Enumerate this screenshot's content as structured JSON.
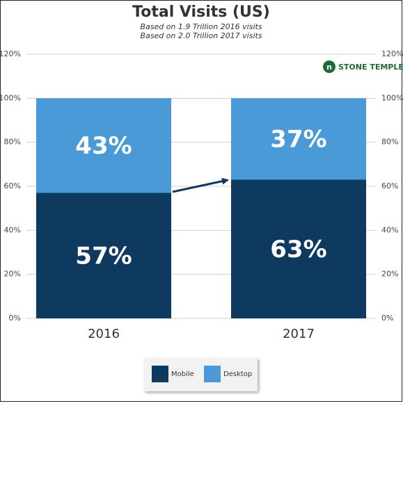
{
  "chart_data": {
    "type": "stacked_bar",
    "title": "Total Visits (US)",
    "subtitle": [
      "Based on 1.9 Trillion 2016 visits",
      "Based on 2.0 Trillion 2017 visits"
    ],
    "logo": "STONE TEMPLE",
    "categories": [
      "2016",
      "2017"
    ],
    "series": [
      {
        "name": "Mobile",
        "color": "#0f3a60",
        "values": [
          57,
          63
        ],
        "value_labels": [
          "57%",
          "63%"
        ]
      },
      {
        "name": "Desktop",
        "color": "#4a9ad8",
        "values": [
          43,
          37
        ],
        "value_labels": [
          "43%",
          "37%"
        ]
      }
    ],
    "ylim": [
      0,
      120
    ],
    "yticks": [
      {
        "value": 0,
        "label": "0%"
      },
      {
        "value": 20,
        "label": "20%"
      },
      {
        "value": 40,
        "label": "40%"
      },
      {
        "value": 60,
        "label": "60%"
      },
      {
        "value": 80,
        "label": "80%"
      },
      {
        "value": 100,
        "label": "100%"
      },
      {
        "value": 120,
        "label": "120%"
      }
    ],
    "grid": true,
    "legend": "bottom"
  }
}
